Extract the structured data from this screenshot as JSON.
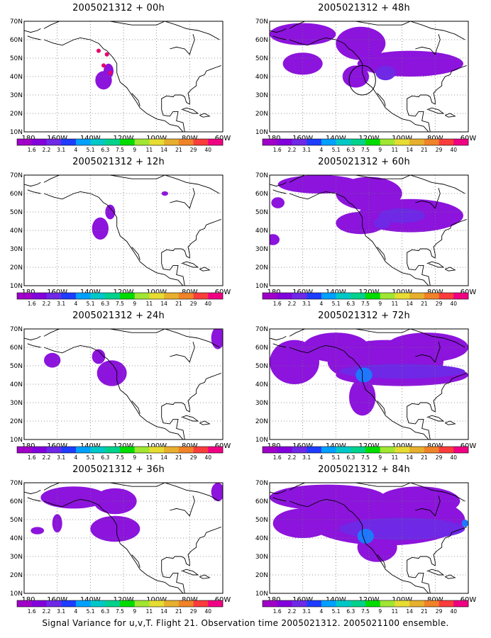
{
  "caption": "Signal Variance for u,v,T. Flight 21. Observation time 2005021312. 2005021100 ensemble.",
  "colorbar": {
    "labels": [
      "1.6",
      "2.2",
      "3.1",
      "4",
      "5.1",
      "6.3",
      "7.5",
      "9",
      "11",
      "14",
      "21",
      "29",
      "40"
    ],
    "colors": [
      "#a000c8",
      "#8200dc",
      "#6e28e6",
      "#1e3cff",
      "#00a0ff",
      "#00c8c8",
      "#00d28c",
      "#00dc00",
      "#a0e632",
      "#e6dc32",
      "#e6af2d",
      "#f08228",
      "#fa3c3c",
      "#f00082"
    ]
  },
  "axes": {
    "x_ticks": [
      "180",
      "160W",
      "140W",
      "120W",
      "100W",
      "80W",
      "60W"
    ],
    "y_ticks": [
      "10N",
      "20N",
      "30N",
      "40N",
      "50N",
      "60N",
      "70N"
    ],
    "xlim": [
      -180,
      -60
    ],
    "ylim": [
      10,
      70
    ]
  },
  "chart_data": [
    {
      "type": "heatmap",
      "title": "2005021312 + 00h",
      "regions": [
        {
          "lon": -132,
          "lat": 38,
          "rx": 5,
          "ry": 5,
          "level": 1
        },
        {
          "lon": -129,
          "lat": 43,
          "rx": 3,
          "ry": 4,
          "level": 1
        }
      ],
      "dots": [
        {
          "lon": -135,
          "lat": 54
        },
        {
          "lon": -132,
          "lat": 46
        },
        {
          "lon": -128,
          "lat": 42
        },
        {
          "lon": -130,
          "lat": 52
        }
      ]
    },
    {
      "type": "heatmap",
      "title": "2005021312 + 48h",
      "regions": [
        {
          "lon": -160,
          "lat": 63,
          "rx": 20,
          "ry": 6,
          "level": 1
        },
        {
          "lon": -125,
          "lat": 58,
          "rx": 15,
          "ry": 9,
          "level": 1
        },
        {
          "lon": -160,
          "lat": 47,
          "rx": 12,
          "ry": 6,
          "level": 1
        },
        {
          "lon": -128,
          "lat": 40,
          "rx": 8,
          "ry": 6,
          "level": 1
        },
        {
          "lon": -95,
          "lat": 47,
          "rx": 32,
          "ry": 7,
          "level": 1
        },
        {
          "lon": -110,
          "lat": 42,
          "rx": 6,
          "ry": 4,
          "level": 2
        }
      ],
      "circle": {
        "lon": -124,
        "lat": 38,
        "r": 8
      }
    },
    {
      "type": "heatmap",
      "title": "2005021312 + 12h",
      "regions": [
        {
          "lon": -134,
          "lat": 41,
          "rx": 5,
          "ry": 6,
          "level": 1
        },
        {
          "lon": -128,
          "lat": 50,
          "rx": 3,
          "ry": 4,
          "level": 1
        },
        {
          "lon": -95,
          "lat": 60,
          "rx": 2,
          "ry": 1.2,
          "level": 1
        }
      ]
    },
    {
      "type": "heatmap",
      "title": "2005021312 + 60h",
      "regions": [
        {
          "lon": -150,
          "lat": 65,
          "rx": 25,
          "ry": 5,
          "level": 1
        },
        {
          "lon": -120,
          "lat": 60,
          "rx": 20,
          "ry": 9,
          "level": 1
        },
        {
          "lon": -95,
          "lat": 48,
          "rx": 32,
          "ry": 9,
          "level": 1
        },
        {
          "lon": -125,
          "lat": 44,
          "rx": 15,
          "ry": 6,
          "level": 1
        },
        {
          "lon": -175,
          "lat": 55,
          "rx": 4,
          "ry": 3,
          "level": 1
        },
        {
          "lon": -178,
          "lat": 35,
          "rx": 4,
          "ry": 3,
          "level": 1
        },
        {
          "lon": -100,
          "lat": 48,
          "rx": 14,
          "ry": 4,
          "level": 2
        },
        {
          "lon": -112,
          "lat": 44,
          "rx": 5,
          "ry": 3,
          "level": 2
        }
      ]
    },
    {
      "type": "heatmap",
      "title": "2005021312 + 24h",
      "regions": [
        {
          "lon": -163,
          "lat": 53,
          "rx": 5,
          "ry": 4,
          "level": 1
        },
        {
          "lon": -127,
          "lat": 46,
          "rx": 9,
          "ry": 7,
          "level": 1
        },
        {
          "lon": -135,
          "lat": 55,
          "rx": 4,
          "ry": 4,
          "level": 1
        },
        {
          "lon": -63,
          "lat": 65,
          "rx": 4,
          "ry": 6,
          "level": 1
        }
      ]
    },
    {
      "type": "heatmap",
      "title": "2005021312 + 72h",
      "regions": [
        {
          "lon": -165,
          "lat": 52,
          "rx": 15,
          "ry": 12,
          "level": 1
        },
        {
          "lon": -140,
          "lat": 60,
          "rx": 20,
          "ry": 8,
          "level": 1
        },
        {
          "lon": -110,
          "lat": 52,
          "rx": 35,
          "ry": 12,
          "level": 1
        },
        {
          "lon": -100,
          "lat": 45,
          "rx": 40,
          "ry": 6,
          "level": 1
        },
        {
          "lon": -124,
          "lat": 33,
          "rx": 8,
          "ry": 10,
          "level": 1
        },
        {
          "lon": -85,
          "lat": 60,
          "rx": 25,
          "ry": 8,
          "level": 1
        },
        {
          "lon": -100,
          "lat": 47,
          "rx": 38,
          "ry": 4,
          "level": 2
        },
        {
          "lon": -123,
          "lat": 45,
          "rx": 5,
          "ry": 4,
          "level": 3
        }
      ]
    },
    {
      "type": "heatmap",
      "title": "2005021312 + 36h",
      "regions": [
        {
          "lon": -150,
          "lat": 62,
          "rx": 20,
          "ry": 6,
          "level": 1
        },
        {
          "lon": -125,
          "lat": 60,
          "rx": 13,
          "ry": 7,
          "level": 1
        },
        {
          "lon": -125,
          "lat": 45,
          "rx": 15,
          "ry": 7,
          "level": 1
        },
        {
          "lon": -172,
          "lat": 44,
          "rx": 4,
          "ry": 2,
          "level": 1
        },
        {
          "lon": -160,
          "lat": 48,
          "rx": 3,
          "ry": 5,
          "level": 1
        },
        {
          "lon": -63,
          "lat": 65,
          "rx": 4,
          "ry": 5,
          "level": 1
        }
      ]
    },
    {
      "type": "heatmap",
      "title": "2005021312 + 84h",
      "regions": [
        {
          "lon": -145,
          "lat": 62,
          "rx": 35,
          "ry": 7,
          "level": 1
        },
        {
          "lon": -160,
          "lat": 48,
          "rx": 18,
          "ry": 8,
          "level": 1
        },
        {
          "lon": -110,
          "lat": 50,
          "rx": 48,
          "ry": 14,
          "level": 1
        },
        {
          "lon": -115,
          "lat": 35,
          "rx": 12,
          "ry": 8,
          "level": 1
        },
        {
          "lon": -90,
          "lat": 60,
          "rx": 25,
          "ry": 8,
          "level": 1
        },
        {
          "lon": -100,
          "lat": 45,
          "rx": 38,
          "ry": 6,
          "level": 2
        },
        {
          "lon": -122,
          "lat": 41,
          "rx": 5,
          "ry": 4,
          "level": 3
        },
        {
          "lon": -62,
          "lat": 48,
          "rx": 2,
          "ry": 2,
          "level": 3
        }
      ]
    }
  ]
}
